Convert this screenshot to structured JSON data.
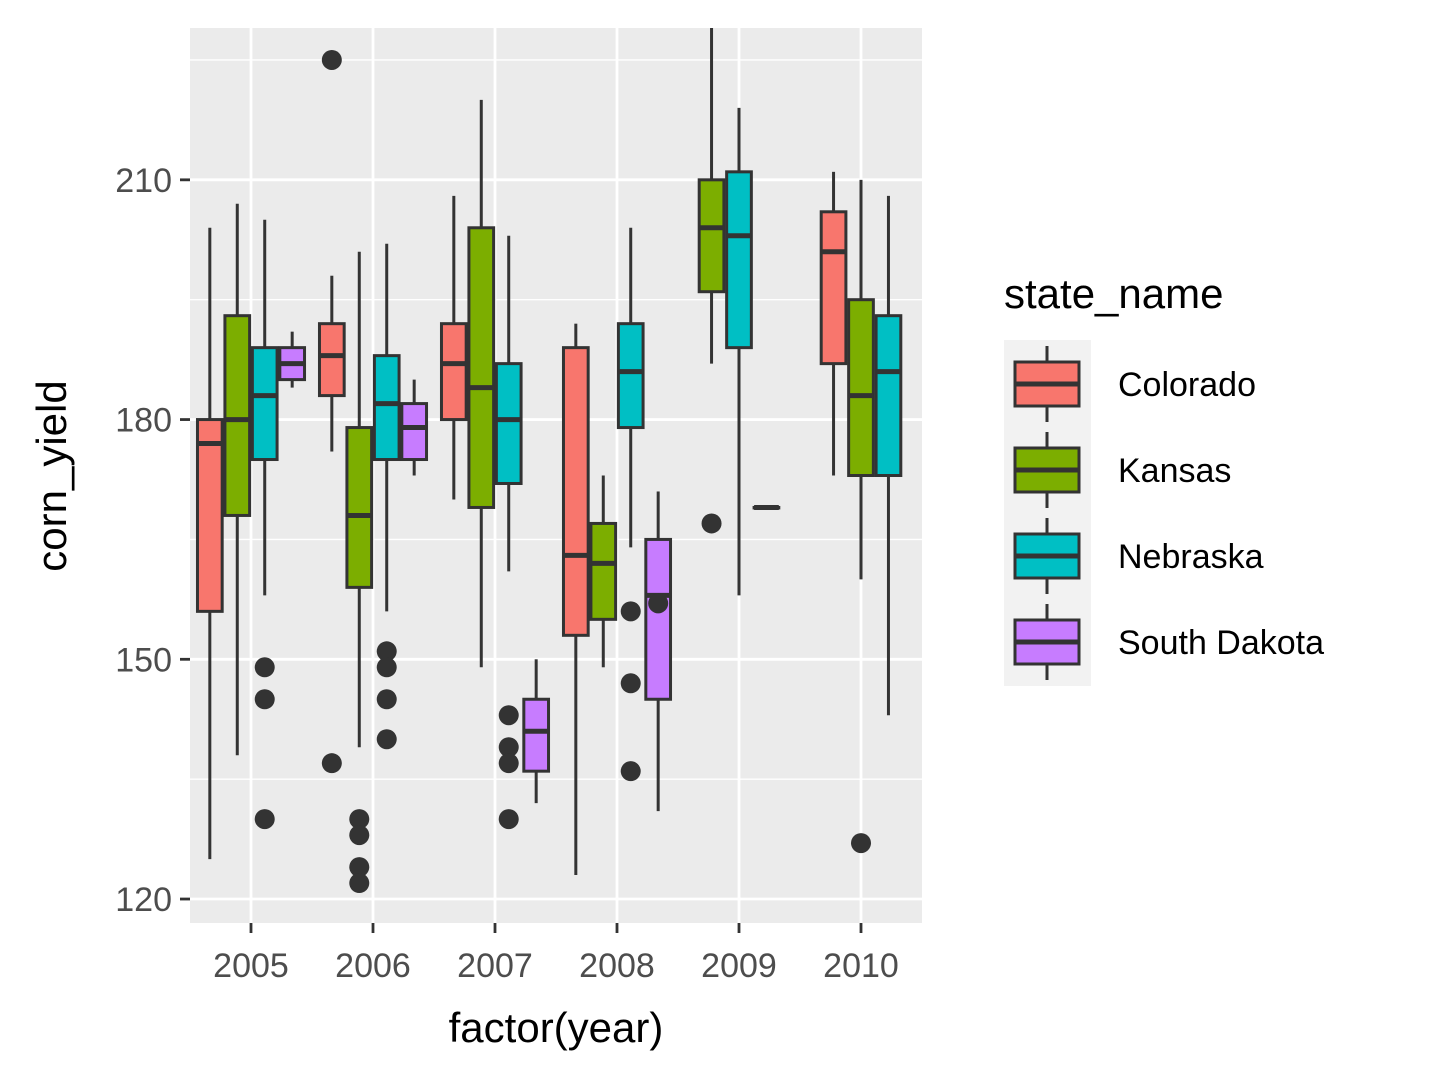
{
  "chart_data": {
    "type": "boxplot",
    "xlabel": "factor(year)",
    "ylabel": "corn_yield",
    "ylim": [
      117,
      229
    ],
    "yticks": [
      120,
      150,
      180,
      210
    ],
    "categories": [
      "2005",
      "2006",
      "2007",
      "2008",
      "2009",
      "2010"
    ],
    "legend": {
      "title": "state_name",
      "position": "right"
    },
    "grid": true,
    "series": [
      {
        "name": "Colorado",
        "color": "#F8766D",
        "boxes": [
          {
            "category": "2005",
            "min": 125,
            "q1": 156,
            "median": 177,
            "q3": 180,
            "max": 204,
            "outliers": []
          },
          {
            "category": "2006",
            "min": 176,
            "q1": 183,
            "median": 188,
            "q3": 192,
            "max": 198,
            "outliers": [
              137,
              225
            ]
          },
          {
            "category": "2007",
            "min": 170,
            "q1": 180,
            "median": 187,
            "q3": 192,
            "max": 208,
            "outliers": []
          },
          {
            "category": "2008",
            "min": 123,
            "q1": 153,
            "median": 163,
            "q3": 189,
            "max": 192,
            "outliers": []
          },
          {
            "category": "2010",
            "min": 173,
            "q1": 187,
            "median": 201,
            "q3": 206,
            "max": 211,
            "outliers": []
          }
        ]
      },
      {
        "name": "Kansas",
        "color": "#7CAE00",
        "boxes": [
          {
            "category": "2005",
            "min": 138,
            "q1": 168,
            "median": 180,
            "q3": 193,
            "max": 207,
            "outliers": []
          },
          {
            "category": "2006",
            "min": 139,
            "q1": 159,
            "median": 168,
            "q3": 179,
            "max": 201,
            "outliers": [
              130,
              128,
              124,
              122
            ]
          },
          {
            "category": "2007",
            "min": 149,
            "q1": 169,
            "median": 184,
            "q3": 204,
            "max": 220,
            "outliers": []
          },
          {
            "category": "2008",
            "min": 149,
            "q1": 155,
            "median": 162,
            "q3": 167,
            "max": 173,
            "outliers": []
          },
          {
            "category": "2009",
            "min": 187,
            "q1": 196,
            "median": 204,
            "q3": 210,
            "max": 229,
            "outliers": [
              167
            ]
          },
          {
            "category": "2010",
            "min": 160,
            "q1": 173,
            "median": 183,
            "q3": 195,
            "max": 210,
            "outliers": [
              127
            ]
          }
        ]
      },
      {
        "name": "Nebraska",
        "color": "#00BFC4",
        "boxes": [
          {
            "category": "2005",
            "min": 158,
            "q1": 175,
            "median": 183,
            "q3": 189,
            "max": 205,
            "outliers": [
              149,
              145,
              130
            ]
          },
          {
            "category": "2006",
            "min": 156,
            "q1": 175,
            "median": 182,
            "q3": 188,
            "max": 202,
            "outliers": [
              151,
              149,
              145,
              140
            ]
          },
          {
            "category": "2007",
            "min": 161,
            "q1": 172,
            "median": 180,
            "q3": 187,
            "max": 203,
            "outliers": [
              143,
              139,
              137,
              130
            ]
          },
          {
            "category": "2008",
            "min": 164,
            "q1": 179,
            "median": 186,
            "q3": 192,
            "max": 204,
            "outliers": [
              156,
              147,
              136
            ]
          },
          {
            "category": "2009",
            "min": 158,
            "q1": 189,
            "median": 203,
            "q3": 211,
            "max": 219,
            "outliers": []
          },
          {
            "category": "2010",
            "min": 143,
            "q1": 173,
            "median": 186,
            "q3": 193,
            "max": 208,
            "outliers": []
          }
        ]
      },
      {
        "name": "South Dakota",
        "color": "#C77CFF",
        "boxes": [
          {
            "category": "2005",
            "min": 184,
            "q1": 185,
            "median": 187,
            "q3": 189,
            "max": 191,
            "outliers": []
          },
          {
            "category": "2006",
            "min": 173,
            "q1": 175,
            "median": 179,
            "q3": 182,
            "max": 185,
            "outliers": []
          },
          {
            "category": "2007",
            "min": 132,
            "q1": 136,
            "median": 141,
            "q3": 145,
            "max": 150,
            "outliers": []
          },
          {
            "category": "2008",
            "min": 131,
            "q1": 145,
            "median": 158,
            "q3": 165,
            "max": 171,
            "outliers": [
              157
            ]
          },
          {
            "category": "2009",
            "min": 169,
            "q1": 169,
            "median": 169,
            "q3": 169,
            "max": 169,
            "outliers": []
          }
        ]
      }
    ]
  }
}
